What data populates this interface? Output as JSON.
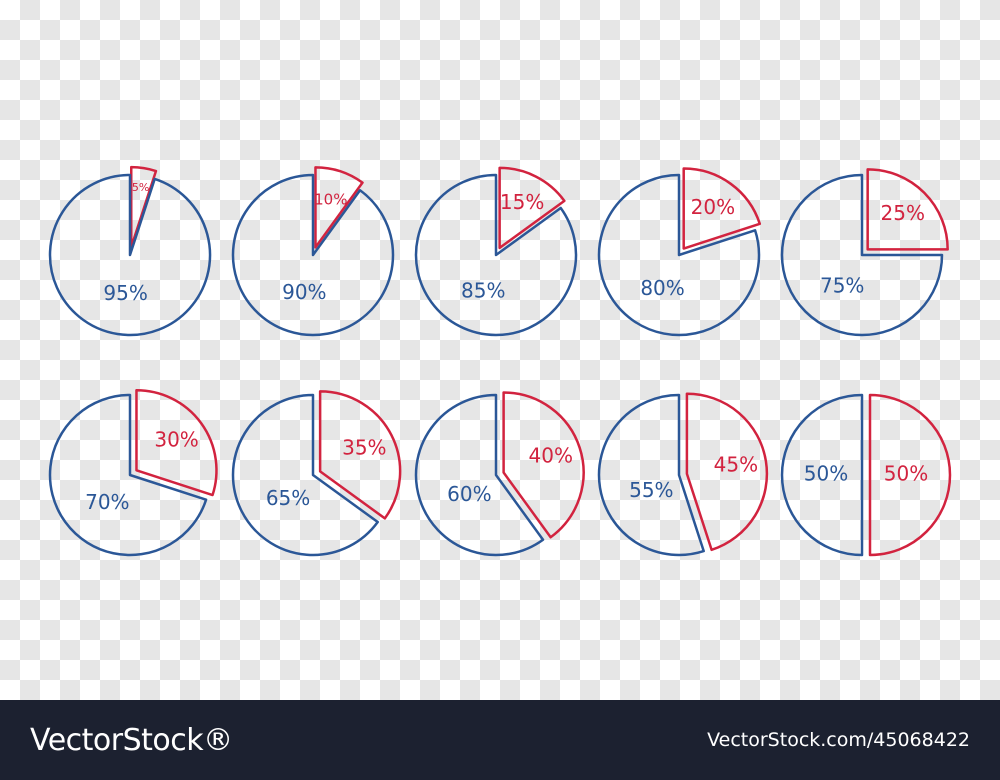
{
  "chart_data": [
    {
      "type": "pie",
      "values": [
        5,
        95
      ],
      "value_labels": [
        "5%",
        "95%"
      ],
      "colors": [
        "#d2233f",
        "#2b5797"
      ]
    },
    {
      "type": "pie",
      "values": [
        10,
        90
      ],
      "value_labels": [
        "10%",
        "90%"
      ],
      "colors": [
        "#d2233f",
        "#2b5797"
      ]
    },
    {
      "type": "pie",
      "values": [
        15,
        85
      ],
      "value_labels": [
        "15%",
        "85%"
      ],
      "colors": [
        "#d2233f",
        "#2b5797"
      ]
    },
    {
      "type": "pie",
      "values": [
        20,
        80
      ],
      "value_labels": [
        "20%",
        "80%"
      ],
      "colors": [
        "#d2233f",
        "#2b5797"
      ]
    },
    {
      "type": "pie",
      "values": [
        25,
        75
      ],
      "value_labels": [
        "25%",
        "75%"
      ],
      "colors": [
        "#d2233f",
        "#2b5797"
      ]
    },
    {
      "type": "pie",
      "values": [
        30,
        70
      ],
      "value_labels": [
        "30%",
        "70%"
      ],
      "colors": [
        "#d2233f",
        "#2b5797"
      ]
    },
    {
      "type": "pie",
      "values": [
        35,
        65
      ],
      "value_labels": [
        "35%",
        "65%"
      ],
      "colors": [
        "#d2233f",
        "#2b5797"
      ]
    },
    {
      "type": "pie",
      "values": [
        40,
        60
      ],
      "value_labels": [
        "40%",
        "60%"
      ],
      "colors": [
        "#d2233f",
        "#2b5797"
      ]
    },
    {
      "type": "pie",
      "values": [
        45,
        55
      ],
      "value_labels": [
        "45%",
        "55%"
      ],
      "colors": [
        "#d2233f",
        "#2b5797"
      ]
    },
    {
      "type": "pie",
      "values": [
        50,
        50
      ],
      "value_labels": [
        "50%",
        "50%"
      ],
      "colors": [
        "#d2233f",
        "#2b5797"
      ]
    }
  ],
  "footer": {
    "brand": "VectorStock®",
    "reference": "VectorStock.com/45068422"
  }
}
